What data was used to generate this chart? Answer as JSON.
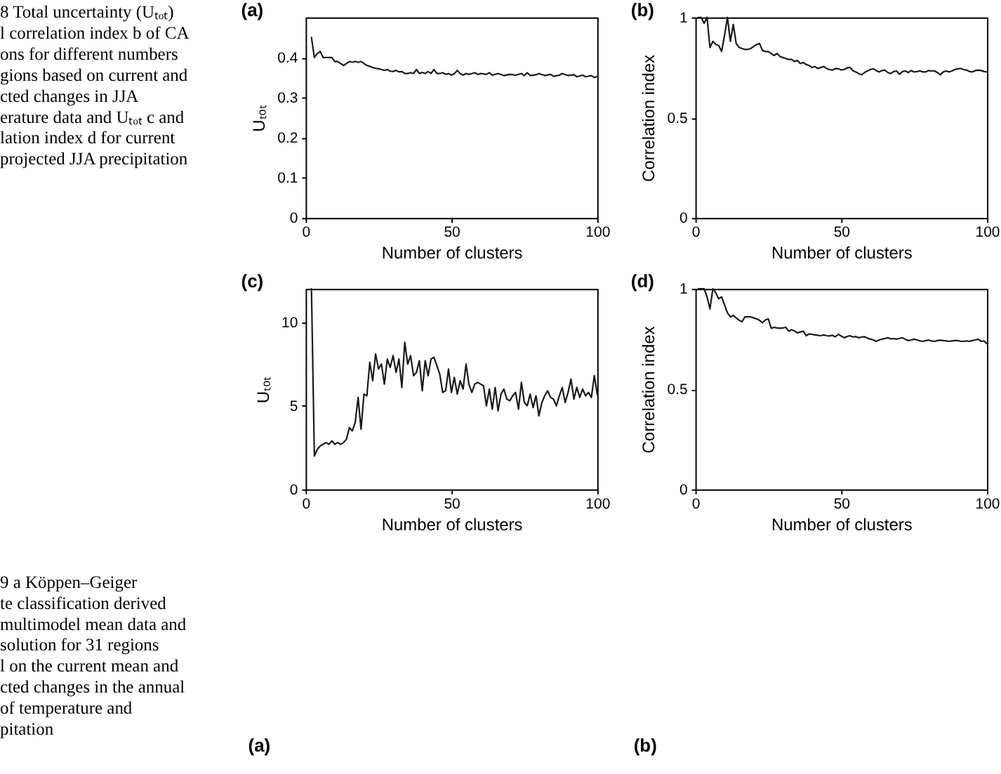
{
  "chart_data": [
    {
      "type": "other",
      "annotations": [
        "8 Total uncertainty (Uₜₒₜ)",
        "l correlation index b of CA",
        "ons for different numbers",
        "gions based on current and",
        "cted changes in JJA",
        "erature data and Uₜₒₜ c and",
        "lation index d for current",
        "projected JJA precipitation"
      ]
    },
    {
      "type": "line",
      "title": "(a)",
      "xlabel": "Number of clusters",
      "ylabel": "Uₜₒₜ",
      "color": "#1a1a1a",
      "x": [
        2,
        3,
        4,
        5,
        6,
        7,
        8,
        9,
        10,
        11,
        12,
        13,
        14,
        15,
        16,
        17,
        18,
        19,
        20,
        21,
        22,
        23,
        24,
        25,
        26,
        27,
        28,
        29,
        30,
        31,
        32,
        33,
        34,
        35,
        36,
        37,
        38,
        39,
        40,
        41,
        42,
        43,
        44,
        45,
        46,
        47,
        48,
        49,
        50,
        51,
        52,
        53,
        54,
        55,
        56,
        57,
        58,
        59,
        60,
        62,
        63,
        64,
        66,
        68,
        70,
        72,
        74,
        75,
        76,
        77,
        79,
        80,
        82,
        84,
        85,
        87,
        88,
        90,
        92,
        93,
        95,
        96,
        98,
        99,
        100
      ],
      "values": [
        0.45,
        0.4,
        0.41,
        0.415,
        0.4,
        0.4,
        0.4,
        0.4,
        0.39,
        0.39,
        0.385,
        0.38,
        0.385,
        0.39,
        0.388,
        0.39,
        0.388,
        0.39,
        0.385,
        0.38,
        0.378,
        0.375,
        0.373,
        0.372,
        0.37,
        0.368,
        0.37,
        0.366,
        0.365,
        0.368,
        0.364,
        0.365,
        0.36,
        0.36,
        0.362,
        0.36,
        0.37,
        0.36,
        0.363,
        0.36,
        0.365,
        0.36,
        0.37,
        0.36,
        0.36,
        0.362,
        0.358,
        0.36,
        0.356,
        0.36,
        0.368,
        0.36,
        0.356,
        0.36,
        0.358,
        0.36,
        0.362,
        0.358,
        0.36,
        0.358,
        0.362,
        0.356,
        0.36,
        0.355,
        0.358,
        0.356,
        0.36,
        0.355,
        0.362,
        0.355,
        0.357,
        0.36,
        0.355,
        0.358,
        0.353,
        0.356,
        0.36,
        0.355,
        0.357,
        0.352,
        0.356,
        0.352,
        0.355,
        0.35,
        0.353
      ],
      "xlim": [
        0,
        100
      ],
      "xticks": [
        0,
        50,
        100
      ],
      "ylim": [
        0,
        0.5
      ],
      "yticks": [
        0,
        0.1,
        0.2,
        0.3,
        0.4
      ]
    },
    {
      "type": "line",
      "title": "(b)",
      "xlabel": "Number of clusters",
      "ylabel": "Correlation index",
      "color": "#1a1a1a",
      "x": [
        1,
        2,
        3,
        4,
        5,
        6,
        7,
        8,
        9,
        10,
        11,
        12,
        13,
        14,
        15,
        16,
        17,
        18,
        19,
        20,
        21,
        22,
        23,
        24,
        25,
        26,
        27,
        28,
        29,
        30,
        31,
        32,
        33,
        34,
        35,
        36,
        37,
        38,
        39,
        40,
        41,
        42,
        43,
        44,
        45,
        46,
        47,
        48,
        49,
        50,
        51,
        52,
        53,
        54,
        55,
        56,
        57,
        58,
        59,
        60,
        61,
        62,
        63,
        64,
        65,
        66,
        67,
        68,
        69,
        70,
        71,
        72,
        73,
        74,
        75,
        76,
        77,
        78,
        79,
        80,
        81,
        82,
        83,
        84,
        85,
        86,
        87,
        88,
        89,
        90,
        91,
        92,
        93,
        94,
        95,
        96,
        97,
        98,
        99,
        100
      ],
      "values": [
        1.0,
        1.0,
        0.97,
        1.0,
        0.85,
        0.88,
        0.865,
        0.86,
        0.83,
        0.91,
        1.0,
        0.88,
        0.965,
        0.87,
        0.85,
        0.845,
        0.84,
        0.84,
        0.845,
        0.855,
        0.865,
        0.87,
        0.835,
        0.83,
        0.83,
        0.82,
        0.81,
        0.82,
        0.805,
        0.8,
        0.795,
        0.79,
        0.79,
        0.78,
        0.785,
        0.77,
        0.775,
        0.765,
        0.76,
        0.75,
        0.755,
        0.745,
        0.75,
        0.755,
        0.745,
        0.74,
        0.737,
        0.745,
        0.744,
        0.738,
        0.74,
        0.748,
        0.751,
        0.735,
        0.728,
        0.72,
        0.714,
        0.725,
        0.733,
        0.74,
        0.744,
        0.735,
        0.728,
        0.735,
        0.737,
        0.725,
        0.72,
        0.73,
        0.733,
        0.716,
        0.73,
        0.733,
        0.725,
        0.735,
        0.728,
        0.73,
        0.733,
        0.728,
        0.728,
        0.735,
        0.733,
        0.733,
        0.725,
        0.714,
        0.728,
        0.733,
        0.728,
        0.733,
        0.74,
        0.744,
        0.745,
        0.74,
        0.737,
        0.73,
        0.728,
        0.735,
        0.737,
        0.735,
        0.73,
        0.728
      ],
      "xlim": [
        0,
        100
      ],
      "xticks": [
        0,
        50,
        100
      ],
      "ylim": [
        0,
        1
      ],
      "yticks": [
        0,
        0.5,
        1
      ]
    },
    {
      "type": "line",
      "title": "(c)",
      "xlabel": "Number of clusters",
      "ylabel": "Uₜₒₜ",
      "color": "#1a1a1a",
      "x": [
        2,
        3,
        4,
        5,
        6,
        7,
        8,
        9,
        10,
        11,
        12,
        13,
        14,
        15,
        16,
        17,
        18,
        19,
        20,
        21,
        22,
        23,
        24,
        25,
        26,
        27,
        28,
        29,
        30,
        31,
        32,
        33,
        34,
        35,
        36,
        37,
        38,
        39,
        40,
        41,
        42,
        43,
        44,
        45,
        46,
        47,
        48,
        49,
        50,
        51,
        52,
        53,
        54,
        55,
        56,
        57,
        58,
        59,
        60,
        61,
        62,
        63,
        64,
        65,
        66,
        67,
        68,
        69,
        70,
        71,
        72,
        73,
        74,
        75,
        76,
        77,
        78,
        79,
        80,
        81,
        82,
        83,
        84,
        85,
        86,
        87,
        88,
        89,
        90,
        91,
        92,
        93,
        94,
        95,
        96,
        97,
        98,
        99,
        100
      ],
      "values": [
        12,
        2.0,
        2.4,
        2.6,
        2.7,
        2.8,
        2.7,
        2.9,
        2.7,
        2.8,
        2.7,
        2.8,
        3.0,
        3.7,
        3.5,
        4.0,
        5.5,
        3.6,
        5.7,
        5.6,
        7.6,
        6.5,
        8.1,
        7.2,
        7.5,
        6.3,
        7.8,
        7.3,
        8.0,
        7.0,
        7.8,
        6.1,
        8.8,
        7.5,
        8.0,
        6.8,
        7.0,
        7.7,
        5.9,
        7.7,
        6.8,
        7.8,
        7.9,
        7.4,
        6.9,
        5.8,
        5.9,
        7.2,
        5.8,
        6.7,
        5.7,
        6.5,
        6.0,
        7.5,
        6.3,
        5.8,
        6.3,
        6.4,
        6.3,
        6.2,
        5.0,
        6.0,
        4.8,
        6.1,
        4.7,
        5.7,
        6.0,
        5.4,
        5.3,
        5.6,
        5.8,
        4.8,
        6.4,
        5.2,
        5.0,
        5.7,
        4.9,
        5.6,
        4.4,
        5.2,
        5.6,
        5.9,
        5.5,
        5.4,
        5.0,
        5.6,
        6.1,
        5.2,
        5.8,
        6.6,
        5.4,
        6.1,
        5.5,
        6.0,
        5.6,
        5.8,
        5.5,
        6.8,
        5.7
      ],
      "xlim": [
        0,
        100
      ],
      "xticks": [
        0,
        50,
        100
      ],
      "ylim": [
        0,
        12
      ],
      "yticks": [
        0,
        5,
        10
      ]
    },
    {
      "type": "line",
      "title": "(d)",
      "xlabel": "Number of clusters",
      "ylabel": "Correlation index",
      "color": "#1a1a1a",
      "x": [
        1,
        3,
        4,
        5,
        6,
        7,
        8,
        9,
        10,
        11,
        12,
        13,
        14,
        15,
        16,
        17,
        18,
        19,
        20,
        21,
        22,
        23,
        24,
        25,
        26,
        27,
        28,
        29,
        30,
        31,
        32,
        33,
        34,
        35,
        36,
        37,
        38,
        39,
        40,
        41,
        42,
        43,
        44,
        45,
        46,
        47,
        48,
        49,
        50,
        51,
        52,
        53,
        54,
        55,
        56,
        57,
        58,
        59,
        60,
        61,
        62,
        63,
        64,
        65,
        66,
        67,
        68,
        69,
        70,
        71,
        72,
        73,
        74,
        75,
        76,
        77,
        78,
        79,
        80,
        81,
        82,
        83,
        84,
        85,
        86,
        87,
        88,
        89,
        90,
        91,
        92,
        93,
        94,
        95,
        96,
        97,
        98,
        99,
        100
      ],
      "values": [
        1.0,
        1.0,
        0.96,
        0.9,
        1.0,
        0.98,
        0.95,
        0.96,
        0.92,
        0.88,
        0.86,
        0.867,
        0.855,
        0.843,
        0.836,
        0.86,
        0.86,
        0.86,
        0.855,
        0.85,
        0.843,
        0.831,
        0.845,
        0.85,
        0.803,
        0.808,
        0.805,
        0.803,
        0.805,
        0.808,
        0.789,
        0.796,
        0.79,
        0.78,
        0.785,
        0.789,
        0.766,
        0.775,
        0.773,
        0.77,
        0.768,
        0.766,
        0.77,
        0.766,
        0.765,
        0.768,
        0.761,
        0.773,
        0.765,
        0.756,
        0.762,
        0.766,
        0.76,
        0.762,
        0.756,
        0.76,
        0.761,
        0.755,
        0.749,
        0.745,
        0.738,
        0.745,
        0.749,
        0.752,
        0.756,
        0.75,
        0.752,
        0.749,
        0.753,
        0.756,
        0.748,
        0.742,
        0.745,
        0.749,
        0.745,
        0.74,
        0.738,
        0.742,
        0.744,
        0.74,
        0.738,
        0.742,
        0.744,
        0.742,
        0.74,
        0.738,
        0.74,
        0.742,
        0.742,
        0.738,
        0.738,
        0.74,
        0.738,
        0.742,
        0.745,
        0.749,
        0.738,
        0.74,
        0.726
      ],
      "xlim": [
        0,
        100
      ],
      "xticks": [
        0,
        50,
        100
      ],
      "ylim": [
        0,
        1
      ],
      "yticks": [
        0,
        0.5,
        1
      ]
    },
    {
      "type": "other",
      "annotations": [
        "9 a Köppen–Geiger",
        "te classification derived",
        "multimodel mean data and",
        "solution for 31 regions",
        "l on the current mean and",
        "cted changes in the annual",
        "of temperature and",
        "pitation"
      ]
    },
    {
      "type": "other",
      "title": "(a)"
    },
    {
      "type": "other",
      "title": "(b)"
    }
  ]
}
